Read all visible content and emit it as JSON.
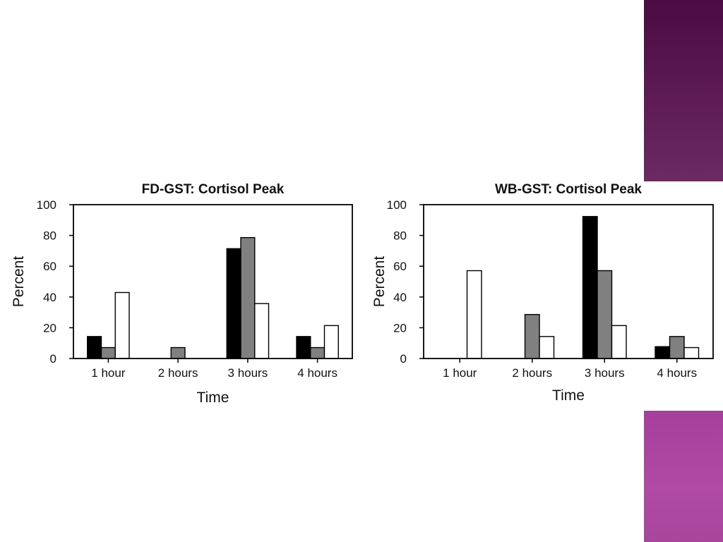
{
  "colors": {
    "series_fill": [
      "#000000",
      "#808080",
      "#ffffff"
    ],
    "decoration_top": "#5a1850",
    "decoration_bottom": "#aa44a0"
  },
  "chart_data": [
    {
      "type": "bar",
      "title": "FD-GST: Cortisol Peak",
      "xlabel": "Time",
      "ylabel": "Percent",
      "categories": [
        "1 hour",
        "2 hours",
        "3 hours",
        "4 hours"
      ],
      "ylim": [
        0,
        100
      ],
      "yticks": [
        0,
        20,
        40,
        60,
        80,
        100
      ],
      "grid": false,
      "series": [
        {
          "values": [
            14.3,
            0,
            71.4,
            14.3
          ]
        },
        {
          "values": [
            7.1,
            7.1,
            78.6,
            7.1
          ]
        },
        {
          "values": [
            42.9,
            0,
            35.7,
            21.4
          ]
        }
      ]
    },
    {
      "type": "bar",
      "title": "WB-GST: Cortisol Peak",
      "xlabel": "Time",
      "ylabel": "Percent",
      "categories": [
        "1 hour",
        "2 hours",
        "3 hours",
        "4 hours"
      ],
      "ylim": [
        0,
        100
      ],
      "yticks": [
        0,
        20,
        40,
        60,
        80,
        100
      ],
      "grid": false,
      "series": [
        {
          "values": [
            0,
            0,
            92.3,
            7.7
          ]
        },
        {
          "values": [
            0,
            28.6,
            57.1,
            14.3
          ]
        },
        {
          "values": [
            57.1,
            14.3,
            21.4,
            7.1
          ]
        }
      ]
    }
  ]
}
